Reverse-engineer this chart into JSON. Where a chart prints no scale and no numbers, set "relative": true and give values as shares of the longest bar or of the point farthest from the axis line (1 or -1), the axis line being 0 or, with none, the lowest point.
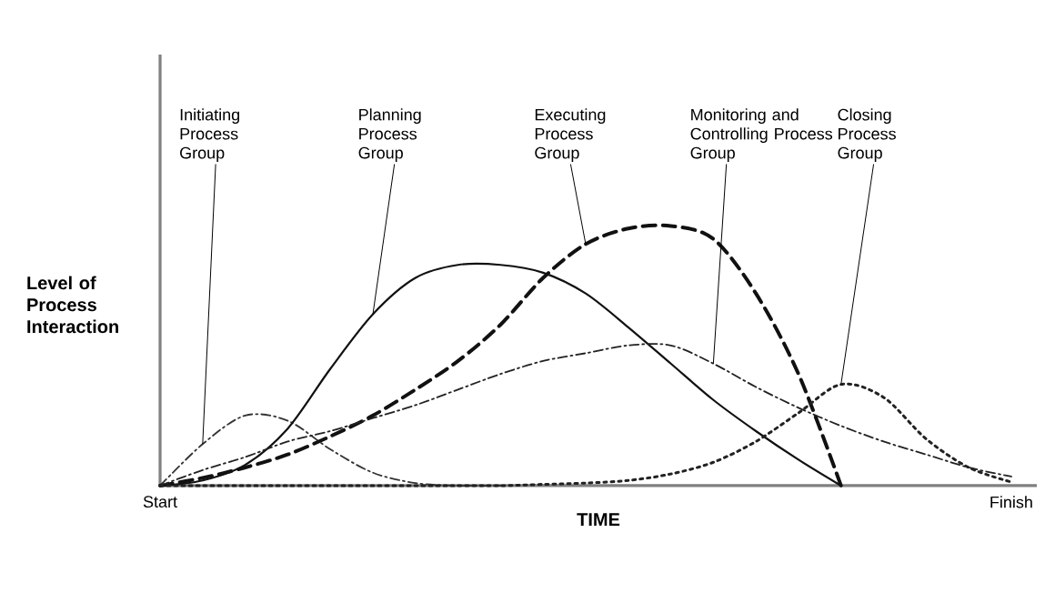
{
  "chart_data": {
    "type": "line",
    "relative": true,
    "xlabel": "TIME",
    "ylabel": "Level of Process Interaction",
    "categories": [
      "Start",
      null,
      null,
      null,
      null,
      null,
      null,
      null,
      null,
      null,
      null,
      null,
      null,
      null,
      null,
      null,
      null,
      null,
      null,
      null,
      "Finish"
    ],
    "grid": false,
    "marker": "none",
    "series": [
      {
        "name": "Initiating Process Group",
        "color": "#333333",
        "line_style": "dashdot",
        "values": [
          0,
          0.16,
          0.27,
          0.25,
          0.14,
          0.05,
          0.01,
          0,
          0,
          null,
          null,
          null,
          null,
          null,
          null,
          null,
          null,
          null,
          null,
          null,
          null
        ]
      },
      {
        "name": "Planning Process Group",
        "color": "#111111",
        "line_style": "solid",
        "values": [
          0,
          0.02,
          0.08,
          0.22,
          0.45,
          0.66,
          0.8,
          0.85,
          0.85,
          0.82,
          0.74,
          0.61,
          0.47,
          0.33,
          0.21,
          0.1,
          0,
          null,
          null,
          null,
          null
        ]
      },
      {
        "name": "Executing Process Group",
        "color": "#111111",
        "line_style": "dashed",
        "values": [
          0,
          0.03,
          0.07,
          0.12,
          0.19,
          0.27,
          0.37,
          0.48,
          0.62,
          0.8,
          0.93,
          0.99,
          1,
          0.95,
          0.74,
          0.43,
          0,
          null,
          null,
          null,
          null
        ]
      },
      {
        "name": "Monitoring and Controlling Process Group",
        "color": "#222222",
        "line_style": "dashdot",
        "values": [
          0,
          0.06,
          0.11,
          0.17,
          0.21,
          0.26,
          0.31,
          0.37,
          0.43,
          0.48,
          0.51,
          0.54,
          0.54,
          0.47,
          0.38,
          0.3,
          0.23,
          0.17,
          0.12,
          0.07,
          0.035
        ]
      },
      {
        "name": "Closing Process Group",
        "color": "#222222",
        "line_style": "dotted",
        "values": [
          0,
          0,
          0,
          0,
          0,
          0,
          0,
          0,
          0,
          0.005,
          0.01,
          0.02,
          0.045,
          0.09,
          0.17,
          0.28,
          0.39,
          0.34,
          0.18,
          0.07,
          0.014
        ]
      }
    ]
  }
}
